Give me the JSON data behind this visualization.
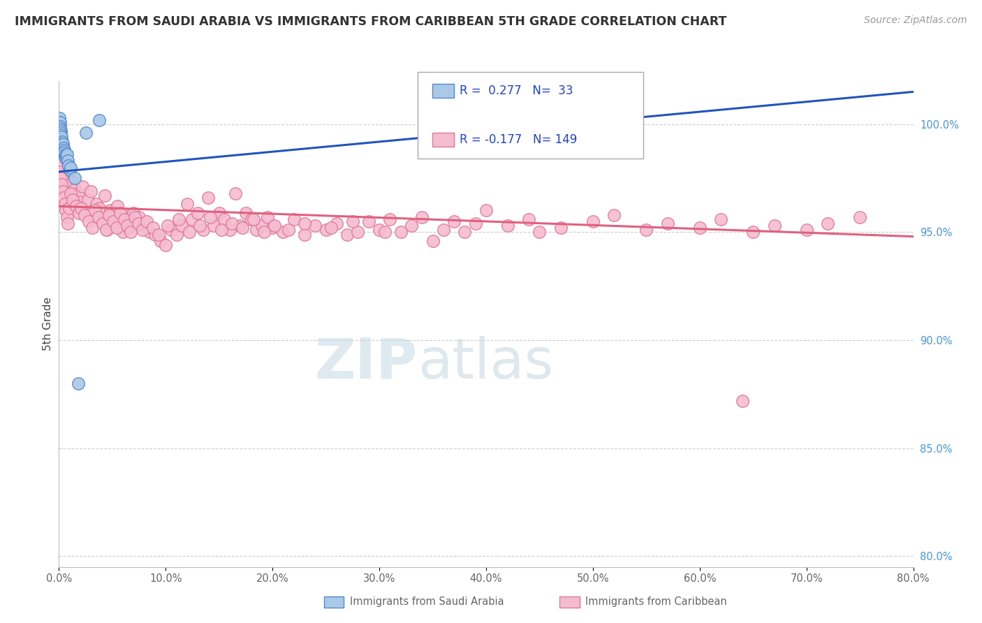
{
  "title": "IMMIGRANTS FROM SAUDI ARABIA VS IMMIGRANTS FROM CARIBBEAN 5TH GRADE CORRELATION CHART",
  "source": "Source: ZipAtlas.com",
  "ylabel": "5th Grade",
  "yticks": [
    80.0,
    85.0,
    90.0,
    95.0,
    100.0
  ],
  "ytick_labels": [
    "80.0%",
    "85.0%",
    "90.0%",
    "95.0%",
    "100.0%"
  ],
  "xmin": 0.0,
  "xmax": 80.0,
  "ymin": 79.5,
  "ymax": 102.0,
  "legend_saudi_r": "0.277",
  "legend_saudi_n": "33",
  "legend_carib_r": "-0.177",
  "legend_carib_n": "149",
  "saudi_color": "#aac8e8",
  "carib_color": "#f5bcd0",
  "saudi_edge": "#5588cc",
  "carib_edge": "#e07898",
  "trendline_saudi_color": "#2255bb",
  "trendline_carib_color": "#e06080",
  "watermark_zip_color": "#c8dce8",
  "watermark_atlas_color": "#b8ccd8",
  "legend_r_color": "#2244cc",
  "legend_n_color": "#223388",
  "saudi_trendline_x0": 0.0,
  "saudi_trendline_y0": 97.8,
  "saudi_trendline_x1": 80.0,
  "saudi_trendline_y1": 101.5,
  "carib_trendline_x0": 0.0,
  "carib_trendline_y0": 96.2,
  "carib_trendline_x1": 80.0,
  "carib_trendline_y1": 94.8,
  "saudi_scatter_x": [
    0.05,
    0.08,
    0.1,
    0.12,
    0.15,
    0.18,
    0.2,
    0.22,
    0.25,
    0.28,
    0.3,
    0.32,
    0.35,
    0.38,
    0.4,
    0.42,
    0.45,
    0.48,
    0.5,
    0.52,
    0.55,
    0.6,
    0.65,
    0.7,
    0.75,
    0.8,
    0.9,
    1.0,
    1.1,
    1.5,
    2.5,
    3.8,
    1.8
  ],
  "saudi_scatter_y": [
    100.3,
    100.1,
    99.9,
    99.8,
    99.7,
    99.6,
    99.5,
    99.3,
    99.4,
    99.2,
    99.1,
    99.0,
    98.9,
    99.1,
    98.8,
    98.9,
    98.7,
    98.8,
    98.6,
    98.7,
    98.5,
    98.6,
    98.4,
    98.5,
    98.6,
    98.3,
    98.1,
    97.9,
    98.0,
    97.5,
    99.6,
    100.2,
    88.0
  ],
  "carib_scatter_x": [
    0.1,
    0.2,
    0.3,
    0.4,
    0.5,
    0.6,
    0.7,
    0.8,
    0.9,
    1.0,
    1.2,
    1.4,
    1.5,
    1.6,
    1.8,
    2.0,
    2.2,
    2.5,
    2.7,
    3.0,
    3.2,
    3.5,
    3.8,
    4.0,
    4.3,
    4.5,
    4.8,
    5.0,
    5.3,
    5.5,
    5.8,
    6.0,
    6.3,
    6.5,
    6.8,
    7.0,
    7.3,
    7.5,
    8.0,
    8.5,
    9.0,
    9.5,
    10.0,
    10.5,
    11.0,
    11.5,
    12.0,
    12.5,
    13.0,
    13.5,
    14.0,
    14.5,
    15.0,
    15.5,
    16.0,
    16.5,
    17.0,
    17.5,
    18.0,
    18.5,
    19.0,
    19.5,
    20.0,
    21.0,
    22.0,
    23.0,
    24.0,
    25.0,
    26.0,
    27.0,
    28.0,
    29.0,
    30.0,
    31.0,
    32.0,
    33.0,
    34.0,
    35.0,
    36.0,
    37.0,
    38.0,
    39.0,
    40.0,
    42.0,
    44.0,
    45.0,
    47.0,
    50.0,
    52.0,
    55.0,
    57.0,
    60.0,
    62.0,
    65.0,
    67.0,
    70.0,
    72.0,
    75.0,
    0.15,
    0.25,
    0.35,
    0.45,
    0.55,
    0.65,
    0.75,
    0.85,
    0.95,
    1.1,
    1.3,
    1.6,
    1.9,
    2.1,
    2.4,
    2.8,
    3.1,
    3.4,
    3.7,
    4.1,
    4.4,
    4.7,
    5.1,
    5.4,
    5.7,
    6.1,
    6.4,
    6.7,
    7.1,
    7.4,
    7.8,
    8.2,
    8.8,
    9.3,
    10.2,
    11.2,
    12.2,
    13.2,
    14.2,
    15.2,
    16.2,
    17.2,
    18.2,
    19.2,
    20.2,
    21.5,
    23.0,
    25.5,
    27.5,
    30.5,
    64.0
  ],
  "carib_scatter_y": [
    98.2,
    97.8,
    97.5,
    97.2,
    97.0,
    96.8,
    97.1,
    96.5,
    96.9,
    96.7,
    97.3,
    96.4,
    97.0,
    96.2,
    96.8,
    96.4,
    97.1,
    95.9,
    96.5,
    96.9,
    95.7,
    96.3,
    96.1,
    95.5,
    96.7,
    95.1,
    96.0,
    95.8,
    95.3,
    96.2,
    95.6,
    95.0,
    95.8,
    95.2,
    95.5,
    95.9,
    95.3,
    95.7,
    95.4,
    95.0,
    94.9,
    94.6,
    94.4,
    95.1,
    94.9,
    95.3,
    96.3,
    95.6,
    95.9,
    95.1,
    96.6,
    95.3,
    95.9,
    95.6,
    95.1,
    96.8,
    95.3,
    95.9,
    95.6,
    95.1,
    95.3,
    95.7,
    95.2,
    95.0,
    95.6,
    94.9,
    95.3,
    95.1,
    95.4,
    94.9,
    95.0,
    95.5,
    95.1,
    95.6,
    95.0,
    95.3,
    95.7,
    94.6,
    95.1,
    95.5,
    95.0,
    95.4,
    96.0,
    95.3,
    95.6,
    95.0,
    95.2,
    95.5,
    95.8,
    95.1,
    95.4,
    95.2,
    95.6,
    95.0,
    95.3,
    95.1,
    95.4,
    95.7,
    97.5,
    97.2,
    96.9,
    96.6,
    96.3,
    96.0,
    95.7,
    95.4,
    96.1,
    96.8,
    96.5,
    96.2,
    95.9,
    96.1,
    95.8,
    95.5,
    95.2,
    96.0,
    95.7,
    95.4,
    95.1,
    95.8,
    95.5,
    95.2,
    95.9,
    95.6,
    95.3,
    95.0,
    95.7,
    95.4,
    95.1,
    95.5,
    95.2,
    94.9,
    95.3,
    95.6,
    95.0,
    95.3,
    95.7,
    95.1,
    95.4,
    95.2,
    95.6,
    95.0,
    95.3,
    95.1,
    95.4,
    95.2,
    95.5,
    95.0,
    87.2
  ]
}
